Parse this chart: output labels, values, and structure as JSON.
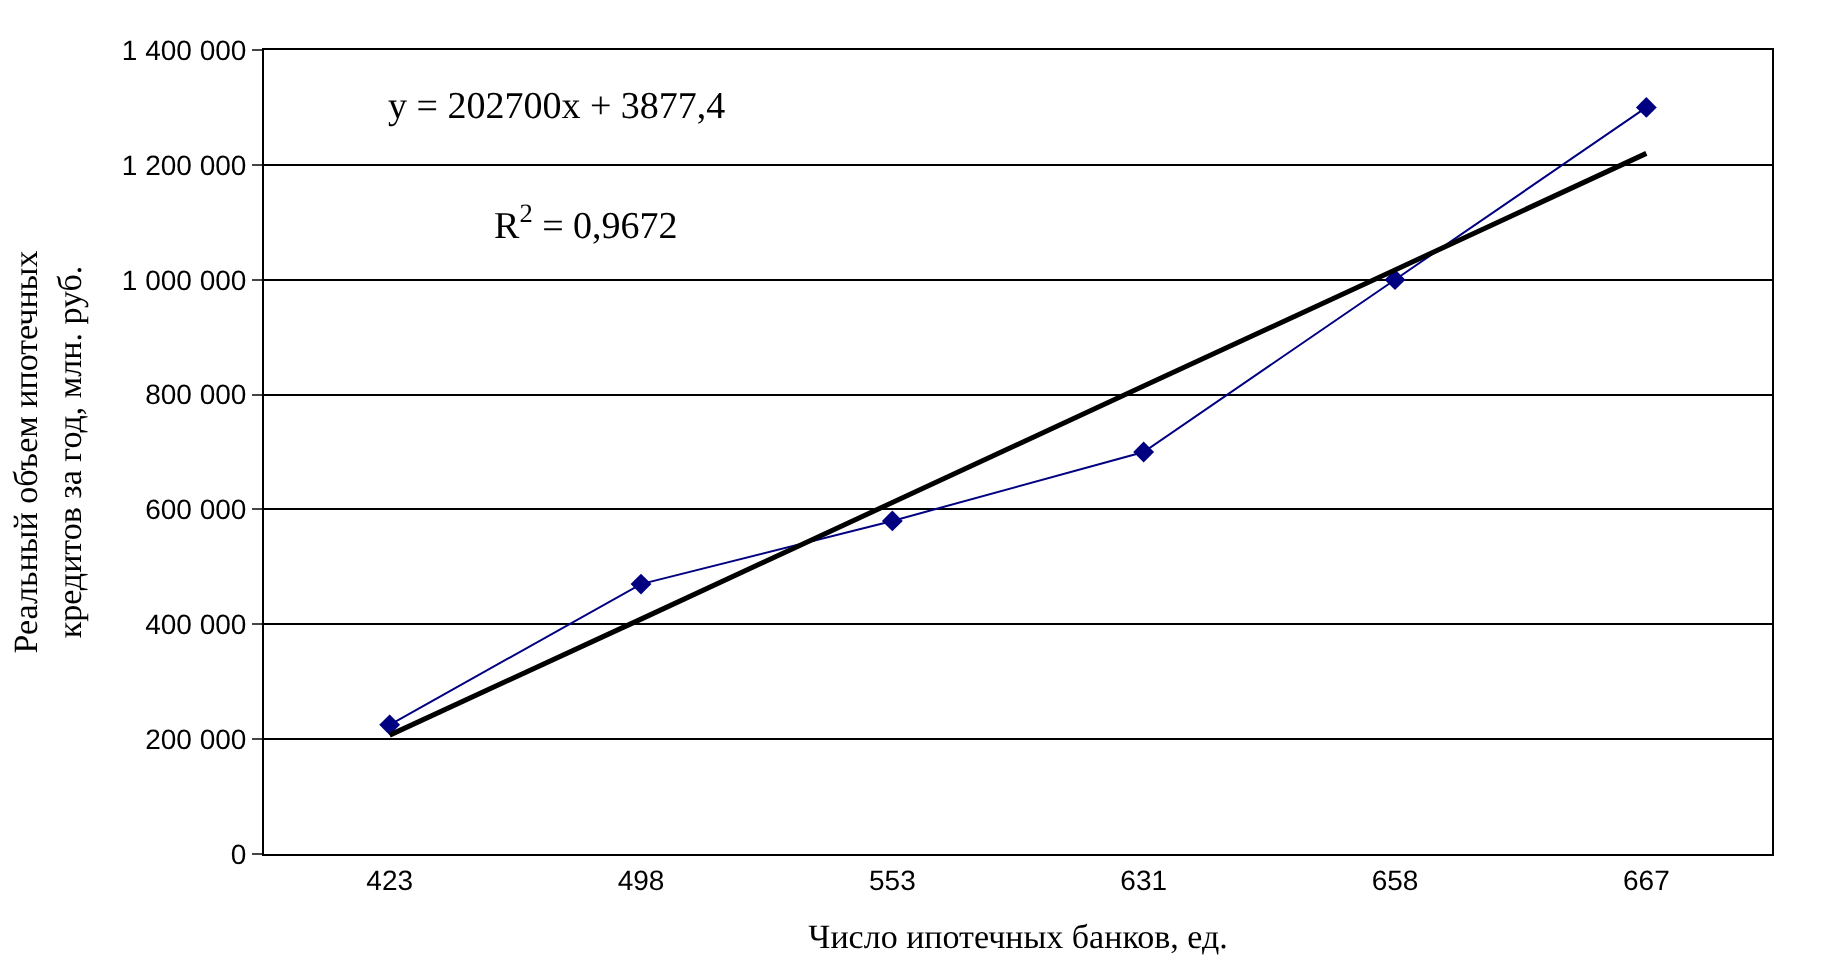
{
  "chart_data": {
    "type": "line",
    "xlabel": "Число ипотечных банков, ед.",
    "ylabel": "Реальный объем ипотечных кредитов за год, млн. руб.",
    "categories": [
      "423",
      "498",
      "553",
      "631",
      "658",
      "667"
    ],
    "series": [
      {
        "color": "#000080",
        "marker": "diamond",
        "values": [
          225000,
          470000,
          580000,
          700000,
          1000000,
          1300000
        ]
      },
      {
        "color": "#000000",
        "marker": "none",
        "values": [
          207000,
          409000,
          612000,
          815000,
          1017000,
          1220000
        ]
      }
    ],
    "annotations": [
      "y = 202700x + 3877,4",
      "R$^{2}$ = 0,9672"
    ],
    "ylim": [
      0,
      1400000
    ],
    "yticks": [
      {
        "value": 0,
        "label": "0"
      },
      {
        "value": 200000,
        "label": "200 000"
      },
      {
        "value": 400000,
        "label": "400 000"
      },
      {
        "value": 600000,
        "label": "600 000"
      },
      {
        "value": 800000,
        "label": "800 000"
      },
      {
        "value": 1000000,
        "label": "1 000 000"
      },
      {
        "value": 1200000,
        "label": "1 200 000"
      },
      {
        "value": 1400000,
        "label": "1 400 000"
      }
    ],
    "grid": "y"
  }
}
